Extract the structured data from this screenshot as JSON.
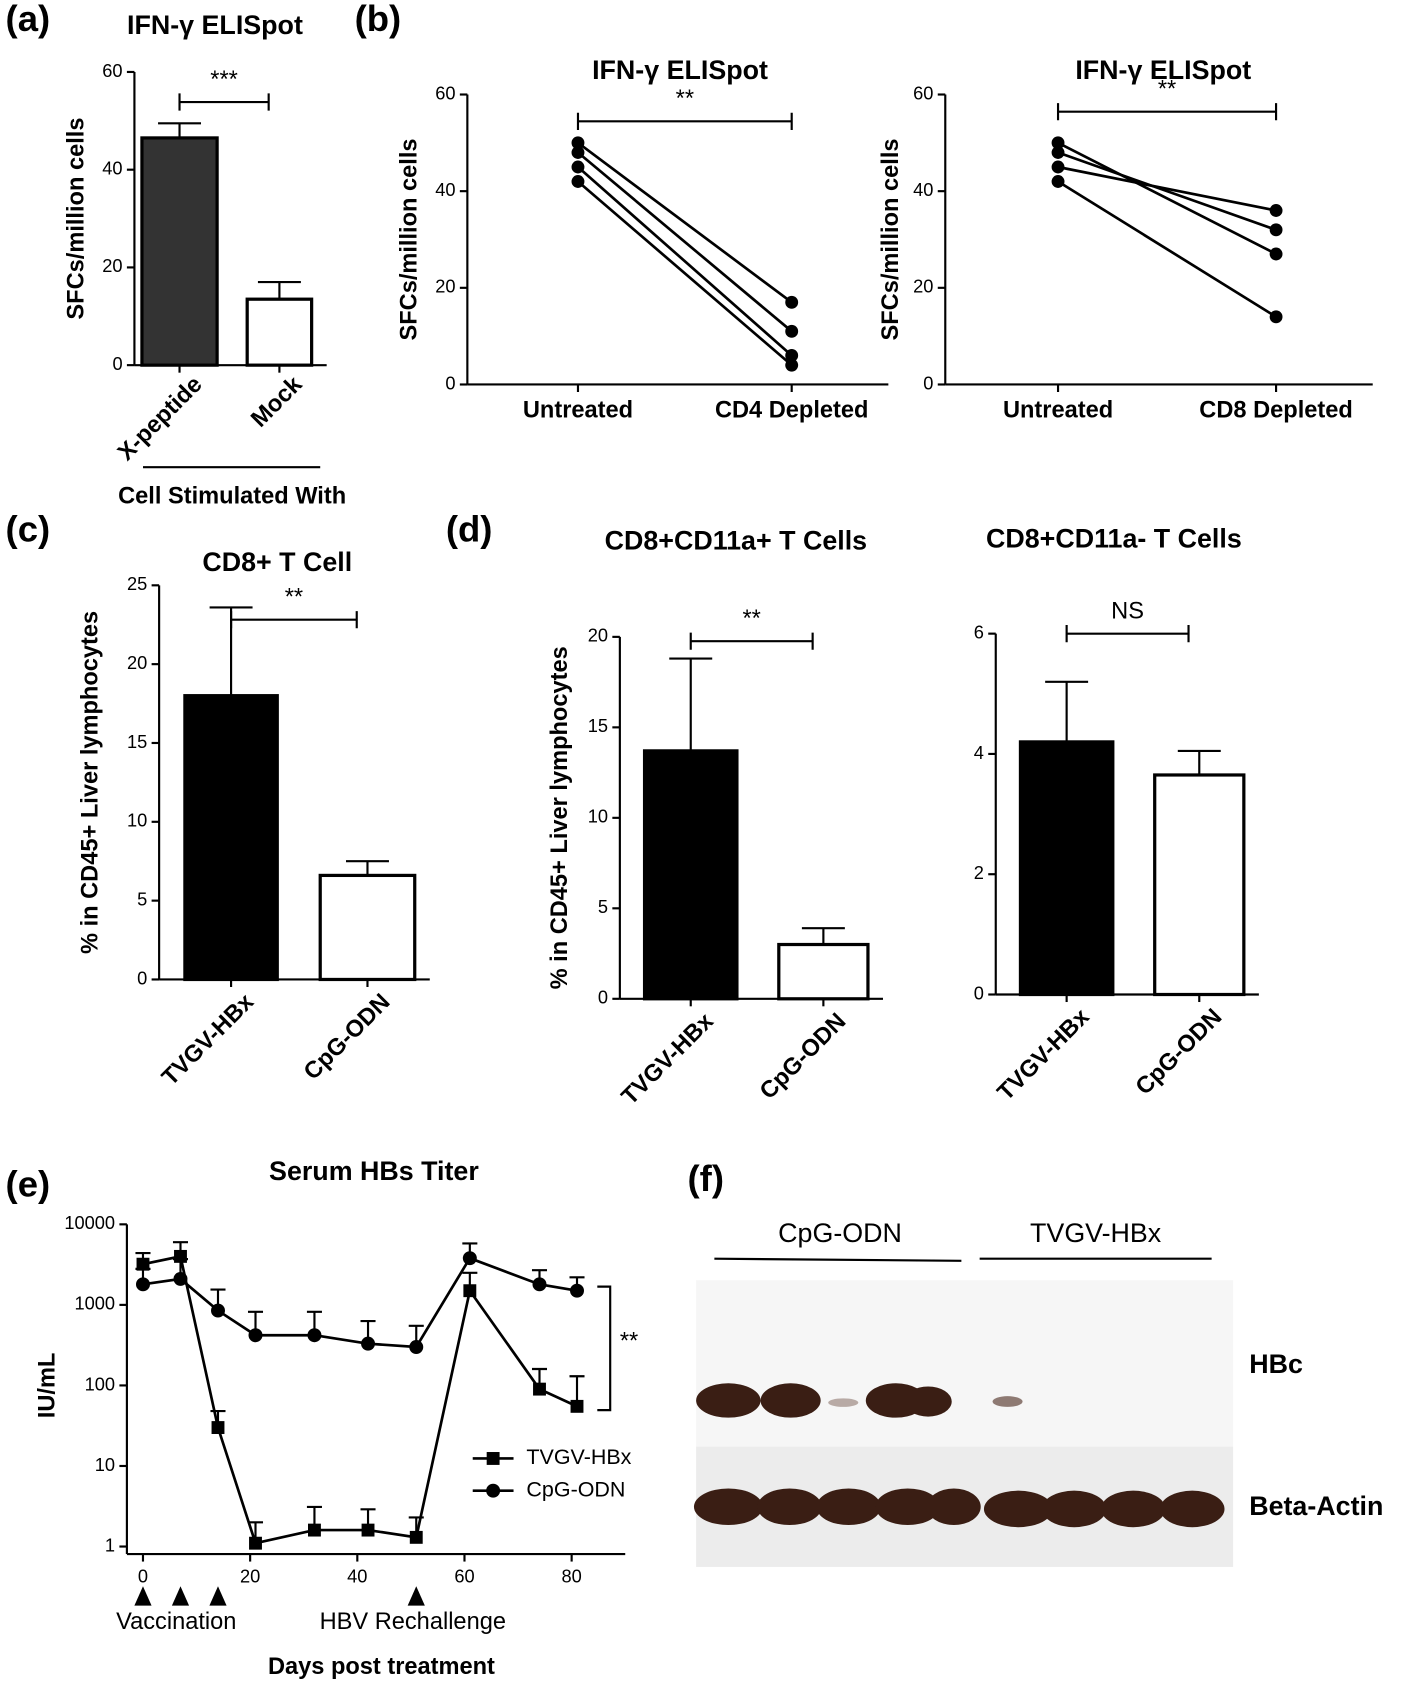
{
  "panel_labels": [
    "(a)",
    "(b)",
    "(c)",
    "(d)",
    "(e)",
    "(f)"
  ],
  "chart_data": [
    {
      "type": "bar",
      "title": "IFN-γ ELISpot",
      "y_label": "SFCs/million cells",
      "x_label": "Cell Stimulated With",
      "categories": [
        "X-peptide",
        "Mock"
      ],
      "values": [
        46.5,
        13.5
      ],
      "errors": [
        3,
        3.5
      ],
      "colors": [
        "#333333",
        "#ffffff"
      ],
      "ylim": [
        0,
        60
      ],
      "yticks": [
        0,
        20,
        40,
        60
      ],
      "significance": "***"
    },
    {
      "type": "paired",
      "title": "IFN-γ ELISpot",
      "y_label": "SFCs/million cells",
      "categories": [
        "Untreated",
        "CD4 Depleted"
      ],
      "color": "#000000",
      "series": [
        {
          "values": [
            50,
            17
          ]
        },
        {
          "values": [
            48,
            11
          ]
        },
        {
          "values": [
            45,
            6
          ]
        },
        {
          "values": [
            42,
            4
          ]
        }
      ],
      "ylim": [
        0,
        60
      ],
      "yticks": [
        0,
        20,
        40,
        60
      ],
      "significance": "**"
    },
    {
      "type": "paired",
      "title": "IFN-γ ELISpot",
      "y_label": "SFCs/million cells",
      "categories": [
        "Untreated",
        "CD8 Depleted"
      ],
      "color": "#000000",
      "series": [
        {
          "values": [
            50,
            27
          ]
        },
        {
          "values": [
            48,
            32
          ]
        },
        {
          "values": [
            45,
            36
          ]
        },
        {
          "values": [
            42,
            14
          ]
        }
      ],
      "ylim": [
        0,
        60
      ],
      "yticks": [
        0,
        20,
        40,
        60
      ],
      "significance": "**"
    },
    {
      "type": "bar",
      "title": "CD8+ T Cell",
      "y_label": "% in CD45+ Liver lymphocytes",
      "categories": [
        "TVGV-HBx",
        "CpG-ODN"
      ],
      "values": [
        18,
        6.6
      ],
      "errors": [
        5.6,
        0.9
      ],
      "colors": [
        "#000000",
        "#ffffff"
      ],
      "ylim": [
        0,
        25
      ],
      "yticks": [
        0,
        5,
        10,
        15,
        20,
        25
      ],
      "significance": "**"
    },
    {
      "type": "bar",
      "title": "CD8+CD11a+ T Cells",
      "y_label": "% in CD45+ Liver lymphocytes",
      "categories": [
        "TVGV-HBx",
        "CpG-ODN"
      ],
      "values": [
        13.7,
        3.0
      ],
      "errors": [
        5.1,
        0.9
      ],
      "colors": [
        "#000000",
        "#ffffff"
      ],
      "ylim": [
        0,
        20
      ],
      "yticks": [
        0,
        5,
        10,
        15,
        20
      ],
      "significance": "**"
    },
    {
      "type": "bar",
      "title": "CD8+CD11a- T Cells",
      "categories": [
        "TVGV-HBx",
        "CpG-ODN"
      ],
      "values": [
        4.2,
        3.65
      ],
      "errors": [
        1.0,
        0.4
      ],
      "colors": [
        "#000000",
        "#ffffff"
      ],
      "ylim": [
        0,
        6
      ],
      "yticks": [
        0,
        2,
        4,
        6
      ],
      "significance": "NS"
    },
    {
      "type": "line",
      "title": "Serum HBs Titer",
      "x_label": "Days post treatment",
      "y_label": "IU/mL",
      "log_y": true,
      "xlim": [
        -3,
        90
      ],
      "xticks": [
        0,
        20,
        40,
        60,
        80
      ],
      "ylim": [
        1,
        10000
      ],
      "yticks": [
        1,
        10,
        100,
        1000,
        10000
      ],
      "series": [
        {
          "name": "TVGV-HBx",
          "marker": "square",
          "color": "#000000",
          "x": [
            0,
            7,
            14,
            21,
            32,
            42,
            51,
            61,
            74,
            81
          ],
          "values": [
            3200,
            4000,
            30,
            1.1,
            1.6,
            1.6,
            1.3,
            1500,
            90,
            55
          ],
          "errors": [
            1200,
            2000,
            18,
            0.9,
            1.5,
            1.3,
            1.0,
            1000,
            70,
            75
          ]
        },
        {
          "name": "CpG-ODN",
          "marker": "circle",
          "color": "#000000",
          "x": [
            0,
            7,
            14,
            21,
            32,
            42,
            51,
            61,
            74,
            81
          ],
          "values": [
            1800,
            2100,
            850,
            420,
            420,
            330,
            300,
            3800,
            1800,
            1500
          ],
          "errors": [
            1000,
            1600,
            700,
            400,
            400,
            300,
            250,
            2000,
            900,
            700
          ]
        }
      ],
      "annotations": [
        {
          "text": "Vaccination",
          "x": [
            0,
            7,
            14
          ]
        },
        {
          "text": "HBV Rechallenge",
          "x": [
            51
          ]
        }
      ],
      "significance": "**"
    }
  ],
  "blot": {
    "groups": [
      "CpG-ODN",
      "TVGV-HBx"
    ],
    "rows": [
      "HBc",
      "Beta-Actin"
    ]
  }
}
